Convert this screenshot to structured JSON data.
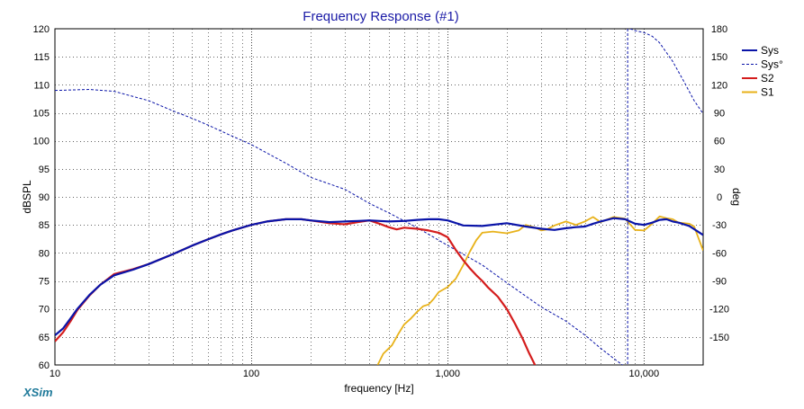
{
  "chart_data": {
    "type": "line",
    "title": "Frequency Response (#1)",
    "xlabel": "frequency [Hz]",
    "ylabel": "dBSPL",
    "y2label": "deg",
    "xscale": "log",
    "xlim": [
      10,
      20000
    ],
    "ylim": [
      60,
      120
    ],
    "y2lim": [
      -180,
      180
    ],
    "grid": true,
    "legend_position": "top-right",
    "x_ticks": [
      {
        "value": 10,
        "label": "10"
      },
      {
        "value": 100,
        "label": "100"
      },
      {
        "value": 1000,
        "label": "1,000"
      },
      {
        "value": 10000,
        "label": "10,000"
      }
    ],
    "y_ticks": [
      {
        "value": 60,
        "label": "60"
      },
      {
        "value": 65,
        "label": "65"
      },
      {
        "value": 70,
        "label": "70"
      },
      {
        "value": 75,
        "label": "75"
      },
      {
        "value": 80,
        "label": "80"
      },
      {
        "value": 85,
        "label": "85"
      },
      {
        "value": 90,
        "label": "90"
      },
      {
        "value": 95,
        "label": "95"
      },
      {
        "value": 100,
        "label": "100"
      },
      {
        "value": 105,
        "label": "105"
      },
      {
        "value": 110,
        "label": "110"
      },
      {
        "value": 115,
        "label": "115"
      },
      {
        "value": 120,
        "label": "120"
      }
    ],
    "y2_ticks": [
      {
        "value": 180,
        "label": "180"
      },
      {
        "value": 150,
        "label": "150"
      },
      {
        "value": 120,
        "label": "120"
      },
      {
        "value": 90,
        "label": "90"
      },
      {
        "value": 60,
        "label": "60"
      },
      {
        "value": 30,
        "label": "30"
      },
      {
        "value": 0,
        "label": "0"
      },
      {
        "value": -30,
        "label": "-30"
      },
      {
        "value": -60,
        "label": "-60"
      },
      {
        "value": -90,
        "label": "-90"
      },
      {
        "value": -120,
        "label": "-120"
      },
      {
        "value": -150,
        "label": "-150"
      }
    ],
    "series": [
      {
        "name": "Sys",
        "axis": "left",
        "style": "solid",
        "color": "#0a14a8",
        "width": 2.2,
        "x": [
          10,
          11,
          12,
          13,
          15,
          17,
          20,
          25,
          30,
          40,
          50,
          60,
          70,
          80,
          100,
          120,
          150,
          180,
          200,
          250,
          300,
          350,
          400,
          450,
          500,
          600,
          700,
          800,
          900,
          1000,
          1200,
          1500,
          2000,
          2500,
          3000,
          3500,
          4000,
          4500,
          5000,
          5500,
          6000,
          7000,
          8000,
          9000,
          10000,
          11000,
          12000,
          13000,
          14000,
          15000,
          17000,
          20000
        ],
        "y": [
          65.3,
          66.5,
          68.3,
          70.0,
          72.5,
          74.3,
          76.0,
          77.0,
          78.0,
          79.8,
          81.3,
          82.4,
          83.3,
          84.0,
          85.0,
          85.6,
          86.0,
          86.0,
          85.8,
          85.5,
          85.6,
          85.7,
          85.8,
          85.7,
          85.6,
          85.7,
          85.9,
          86.0,
          86.0,
          85.8,
          84.9,
          84.8,
          85.3,
          84.7,
          84.3,
          84.1,
          84.4,
          84.6,
          84.7,
          85.2,
          85.6,
          86.2,
          86.0,
          85.2,
          85.0,
          85.4,
          85.9,
          86.0,
          85.6,
          85.4,
          84.8,
          83.2
        ]
      },
      {
        "name": "Sys°",
        "axis": "right",
        "style": "dashed",
        "color": "#0a14a8",
        "width": 1,
        "x": [
          10,
          15,
          20,
          30,
          40,
          50,
          60,
          80,
          100,
          150,
          200,
          300,
          400,
          500,
          700,
          1000,
          1500,
          2000,
          3000,
          4000,
          5000,
          6000,
          7000,
          8000,
          8500,
          9000,
          10000,
          11000,
          12000,
          14000,
          16000,
          18000,
          20000
        ],
        "y": [
          114,
          115,
          113,
          103,
          92,
          84,
          77,
          65,
          56,
          36,
          21,
          8,
          -7,
          -17,
          -33,
          -52,
          -73,
          -92,
          -118,
          -133,
          -148,
          -162,
          -173,
          -182,
          180,
          178,
          176,
          172,
          165,
          145,
          123,
          103,
          89
        ]
      },
      {
        "name": "S2",
        "axis": "left",
        "style": "solid",
        "color": "#d41c1c",
        "width": 2.2,
        "x": [
          10,
          11,
          12,
          13,
          15,
          17,
          20,
          25,
          30,
          40,
          50,
          60,
          70,
          80,
          100,
          120,
          150,
          180,
          200,
          250,
          300,
          350,
          400,
          450,
          500,
          550,
          600,
          700,
          800,
          900,
          1000,
          1100,
          1200,
          1300,
          1400,
          1500,
          1600,
          1800,
          2000,
          2200,
          2400,
          2600,
          2800
        ],
        "y": [
          64.2,
          65.8,
          67.8,
          69.8,
          72.4,
          74.3,
          76.2,
          77.1,
          78.0,
          79.8,
          81.3,
          82.4,
          83.3,
          84.0,
          85.0,
          85.6,
          86.0,
          86.0,
          85.8,
          85.3,
          85.1,
          85.5,
          85.8,
          85.2,
          84.6,
          84.2,
          84.5,
          84.3,
          84.0,
          83.6,
          82.8,
          80.5,
          78.7,
          77.2,
          76.0,
          75.0,
          73.9,
          72.2,
          70.0,
          67.4,
          64.8,
          62.1,
          59.8
        ]
      },
      {
        "name": "S1",
        "axis": "left",
        "style": "solid",
        "color": "#e8b21a",
        "width": 1.8,
        "x": [
          440,
          470,
          520,
          560,
          600,
          650,
          700,
          750,
          800,
          850,
          900,
          1000,
          1100,
          1200,
          1300,
          1400,
          1500,
          1700,
          2000,
          2300,
          2500,
          2800,
          3000,
          3200,
          3500,
          4000,
          4500,
          5000,
          5500,
          6000,
          7000,
          8000,
          9000,
          10000,
          11000,
          12000,
          13000,
          14000,
          15000,
          16000,
          17000,
          18000,
          20000
        ],
        "y": [
          60.0,
          62.0,
          63.5,
          65.5,
          67.2,
          68.3,
          69.5,
          70.5,
          70.8,
          71.8,
          73.0,
          73.9,
          75.4,
          77.8,
          80.3,
          82.3,
          83.6,
          83.8,
          83.5,
          84.0,
          85.0,
          84.5,
          84.0,
          84.2,
          84.9,
          85.6,
          85.0,
          85.6,
          86.4,
          85.5,
          86.4,
          86.1,
          84.1,
          84.0,
          85.2,
          86.5,
          86.2,
          86.0,
          85.4,
          85.3,
          85.2,
          84.7,
          80.4
        ]
      }
    ]
  },
  "brand": "XSim"
}
